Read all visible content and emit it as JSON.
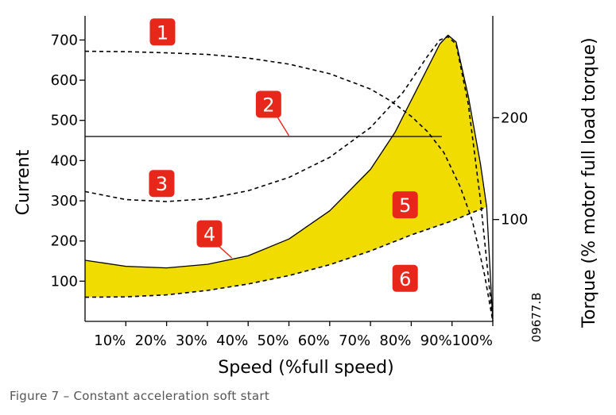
{
  "caption": "Figure 7 – Constant acceleration soft start",
  "colors": {
    "fill": "#f0dc00",
    "badge": "#e8271b",
    "line": "#000000"
  },
  "chart_data": {
    "type": "line",
    "xlabel": "Speed (%full speed)",
    "ylabel": "Current",
    "y2label": "Torque (% motor full load torque)",
    "xlim": [
      0,
      100
    ],
    "ylim": [
      0,
      760
    ],
    "y2lim": [
      0,
      300
    ],
    "xticks": [
      10,
      20,
      30,
      40,
      50,
      60,
      70,
      80,
      90,
      100
    ],
    "xtick_labels": [
      "10%",
      "20%",
      "30%",
      "40%",
      "50%",
      "60%",
      "70%",
      "80%",
      "90%",
      "100%"
    ],
    "yticks": [
      100,
      200,
      300,
      400,
      500,
      600,
      700
    ],
    "y2ticks": [
      100,
      200
    ],
    "code_label": "09677.B",
    "series": [
      {
        "style": "dashed",
        "label": "1",
        "x": [
          0,
          10,
          20,
          30,
          40,
          50,
          60,
          70,
          75,
          80,
          84,
          88,
          92,
          95,
          98,
          100
        ],
        "y": [
          672,
          671,
          668,
          664,
          655,
          640,
          616,
          578,
          548,
          510,
          472,
          420,
          335,
          250,
          115,
          0
        ]
      },
      {
        "style": "solid",
        "label": "2",
        "x": [
          0,
          87.5
        ],
        "y": [
          460,
          460
        ]
      },
      {
        "style": "dashed",
        "label": "3",
        "x": [
          0,
          10,
          20,
          30,
          40,
          50,
          60,
          70,
          78,
          84,
          87,
          89,
          91,
          94,
          97,
          100
        ],
        "y": [
          323,
          303,
          298,
          305,
          325,
          358,
          408,
          482,
          570,
          660,
          700,
          708,
          690,
          540,
          300,
          0
        ]
      },
      {
        "style": "solid",
        "label": "4",
        "x": [
          0,
          10,
          20,
          30,
          40,
          50,
          60,
          70,
          76,
          80,
          84,
          87,
          89,
          91,
          94,
          97,
          98.5,
          100
        ],
        "y": [
          152,
          137,
          133,
          142,
          163,
          205,
          275,
          378,
          470,
          550,
          630,
          690,
          712,
          695,
          560,
          390,
          285,
          0
        ]
      },
      {
        "style": "dashed",
        "label": "6",
        "x": [
          0,
          10,
          20,
          30,
          40,
          50,
          60,
          70,
          80,
          90,
          98.5
        ],
        "y": [
          60,
          61,
          66,
          77,
          93,
          114,
          141,
          175,
          215,
          250,
          285
        ]
      }
    ],
    "fill_region": {
      "between": [
        "4",
        "6"
      ],
      "label": "5"
    },
    "annotations": [
      {
        "label": "1",
        "x": 19,
        "y": 720
      },
      {
        "label": "2",
        "x": 45,
        "y": 540,
        "pointer_to": [
          50,
          462
        ]
      },
      {
        "label": "3",
        "x": 18.8,
        "y": 343
      },
      {
        "label": "4",
        "x": 30.5,
        "y": 218,
        "pointer_to": [
          36,
          158
        ]
      },
      {
        "label": "5",
        "x": 78.5,
        "y": 290
      },
      {
        "label": "6",
        "x": 78.5,
        "y": 107
      }
    ]
  }
}
